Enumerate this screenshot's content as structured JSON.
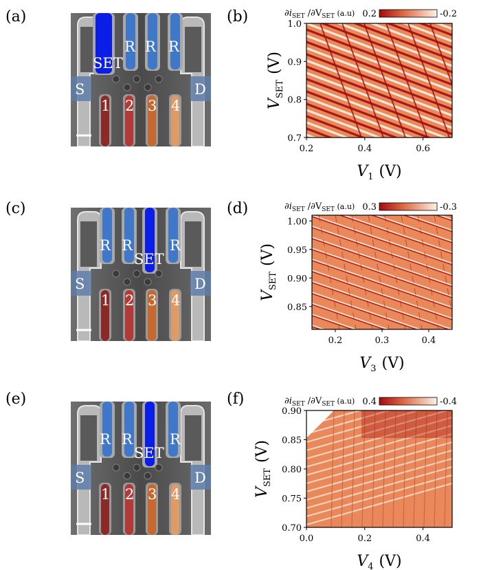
{
  "panels": [
    {
      "label": "(a)",
      "scale_bar": "",
      "gates": {
        "top": [
          "SET",
          "R",
          "R",
          "R"
        ],
        "sides": [
          "S",
          "D"
        ],
        "plungers": [
          "1",
          "2",
          "3",
          "4"
        ]
      },
      "set_index": 0
    },
    {
      "label": "(c)",
      "gates": {
        "top": [
          "R",
          "R",
          "SET",
          "R"
        ],
        "sides": [
          "S",
          "D"
        ],
        "plungers": [
          "1",
          "2",
          "3",
          "4"
        ]
      },
      "set_index": 2
    },
    {
      "label": "(e)",
      "gates": {
        "top": [
          "R",
          "R",
          "SET",
          "R"
        ],
        "sides": [
          "S",
          "D"
        ],
        "plungers": [
          "1",
          "2",
          "3",
          "4"
        ]
      },
      "set_index": 2
    }
  ],
  "colors": {
    "set_gate": "#0a1ee8",
    "reservoir_gate": "#3f78c9",
    "plunger": [
      "#8b2a26",
      "#b23a36",
      "#c7682e",
      "#e09a66"
    ],
    "colorbar_neg": "#a40c0c",
    "colorbar_pos": "#fbf2e6",
    "map_mid": "#e9885a"
  },
  "chart_data": [
    {
      "panel_label": "(b)",
      "type": "heatmap",
      "xlabel_var": "V",
      "xlabel_sub": "1",
      "xlabel_unit": "(V)",
      "ylabel_var": "V",
      "ylabel_sub": "SET",
      "ylabel_unit": "(V)",
      "xlim": [
        0.2,
        0.7
      ],
      "ylim": [
        0.7,
        1.0
      ],
      "xticks": [
        0.2,
        0.4,
        0.6
      ],
      "xtick_labels": [
        "0.2",
        "0.4",
        "0.6"
      ],
      "yticks": [
        0.7,
        0.8,
        0.9,
        1.0
      ],
      "ytick_labels": [
        "0.7",
        "0.8",
        "0.9",
        "1.0"
      ],
      "colorbar_title": "∂i",
      "colorbar_title_rest": "SET",
      "colorbar_title_tail": " /∂V",
      "colorbar_title_sub2": "SET",
      "colorbar_title_unit": " (a.u)",
      "colorbar_min_label": "0.2",
      "colorbar_max_label": "-0.2",
      "pattern": "dense"
    },
    {
      "panel_label": "(d)",
      "type": "heatmap",
      "xlabel_var": "V",
      "xlabel_sub": "3",
      "xlabel_unit": "(V)",
      "ylabel_var": "V",
      "ylabel_sub": "SET",
      "ylabel_unit": "(V)",
      "xlim": [
        0.15,
        0.45
      ],
      "ylim": [
        0.81,
        1.01
      ],
      "xticks": [
        0.2,
        0.3,
        0.4
      ],
      "xtick_labels": [
        "0.2",
        "0.3",
        "0.4"
      ],
      "yticks": [
        0.85,
        0.9,
        0.95,
        1.0
      ],
      "ytick_labels": [
        "0.85",
        "0.90",
        "0.95",
        "1.00"
      ],
      "colorbar_title": "∂i",
      "colorbar_title_rest": "SET",
      "colorbar_title_tail": " /∂V",
      "colorbar_title_sub2": "SET",
      "colorbar_title_unit": " (a.u)",
      "colorbar_min_label": "0.3",
      "colorbar_max_label": "-0.3",
      "pattern": "sparse"
    },
    {
      "panel_label": "(f)",
      "type": "heatmap",
      "xlabel_var": "V",
      "xlabel_sub": "4",
      "xlabel_unit": "(V)",
      "ylabel_var": "V",
      "ylabel_sub": "SET",
      "ylabel_unit": "(V)",
      "xlim": [
        0.0,
        0.5
      ],
      "ylim": [
        0.7,
        0.9
      ],
      "xticks": [
        0.0,
        0.2,
        0.4
      ],
      "xtick_labels": [
        "0.0",
        "0.2",
        "0.4"
      ],
      "yticks": [
        0.7,
        0.75,
        0.8,
        0.85,
        0.9
      ],
      "ytick_labels": [
        "0.70",
        "0.75",
        "0.80",
        "0.85",
        "0.90"
      ],
      "colorbar_title": "∂i",
      "colorbar_title_rest": "SET",
      "colorbar_title_tail": " /∂V",
      "colorbar_title_sub2": "SET",
      "colorbar_title_unit": " (a.u)",
      "colorbar_min_label": "0.4",
      "colorbar_max_label": "-0.4",
      "pattern": "streaks"
    }
  ]
}
